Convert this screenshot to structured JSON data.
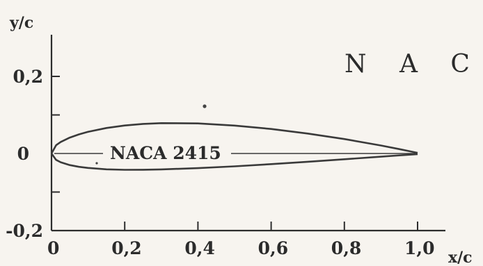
{
  "chart_data": {
    "type": "line",
    "title": "N A C A",
    "xlabel": "x/c",
    "ylabel": "y/c",
    "xlim": [
      0,
      1.0
    ],
    "ylim": [
      -0.2,
      0.2
    ],
    "x_ticks": [
      0,
      0.2,
      0.4,
      0.6,
      0.8,
      1.0
    ],
    "x_tick_labels": [
      "0",
      "0,2",
      "0,4",
      "0,6",
      "0,8",
      "1,0"
    ],
    "y_ticks": [
      -0.2,
      0,
      0.2
    ],
    "y_tick_labels": [
      "-0,2",
      "0",
      "0,2"
    ],
    "grid": false,
    "series": [
      {
        "name": "NACA 2415",
        "color": "#3a3a3a",
        "upper": {
          "x": [
            0,
            0.0125,
            0.025,
            0.05,
            0.075,
            0.1,
            0.15,
            0.2,
            0.25,
            0.3,
            0.4,
            0.5,
            0.6,
            0.7,
            0.8,
            0.9,
            0.95,
            1.0
          ],
          "y": [
            0,
            0.0215,
            0.0299,
            0.0413,
            0.0496,
            0.0563,
            0.0661,
            0.0726,
            0.0767,
            0.0788,
            0.078,
            0.0724,
            0.0636,
            0.0518,
            0.0375,
            0.0208,
            0.0114,
            0.0016
          ]
        },
        "lower": {
          "x": [
            0,
            0.0125,
            0.025,
            0.05,
            0.075,
            0.1,
            0.15,
            0.2,
            0.25,
            0.3,
            0.4,
            0.5,
            0.6,
            0.7,
            0.8,
            0.9,
            0.95,
            1.0
          ],
          "y": [
            0,
            -0.0165,
            -0.0227,
            -0.0301,
            -0.0346,
            -0.0375,
            -0.041,
            -0.0423,
            -0.0422,
            -0.0412,
            -0.038,
            -0.0334,
            -0.0276,
            -0.0214,
            -0.015,
            -0.0082,
            -0.0048,
            -0.0016
          ]
        }
      }
    ]
  }
}
